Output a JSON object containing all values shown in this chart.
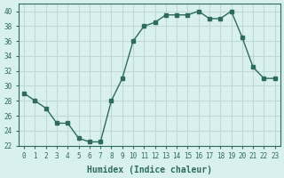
{
  "x": [
    0,
    1,
    2,
    3,
    4,
    5,
    6,
    7,
    8,
    9,
    10,
    11,
    12,
    13,
    14,
    15,
    16,
    17,
    18,
    19,
    20,
    21,
    22,
    23
  ],
  "y": [
    29,
    28,
    27,
    25,
    25,
    23,
    22.5,
    22.5,
    28,
    31,
    36,
    38,
    38.5,
    39.5,
    39.5,
    39.5,
    40,
    39,
    39,
    40,
    36.5,
    32.5,
    31,
    31
  ],
  "xlim": [
    -0.5,
    23.5
  ],
  "ylim": [
    22,
    41
  ],
  "yticks": [
    22,
    24,
    26,
    28,
    30,
    32,
    34,
    36,
    38,
    40
  ],
  "xticks": [
    0,
    1,
    2,
    3,
    4,
    5,
    6,
    7,
    8,
    9,
    10,
    11,
    12,
    13,
    14,
    15,
    16,
    17,
    18,
    19,
    20,
    21,
    22,
    23
  ],
  "xlabel": "Humidex (Indice chaleur)",
  "line_color": "#2e6b5e",
  "marker": "s",
  "marker_size": 2.5,
  "bg_color": "#d8f0f0",
  "grid_color": "#c0d8d8"
}
